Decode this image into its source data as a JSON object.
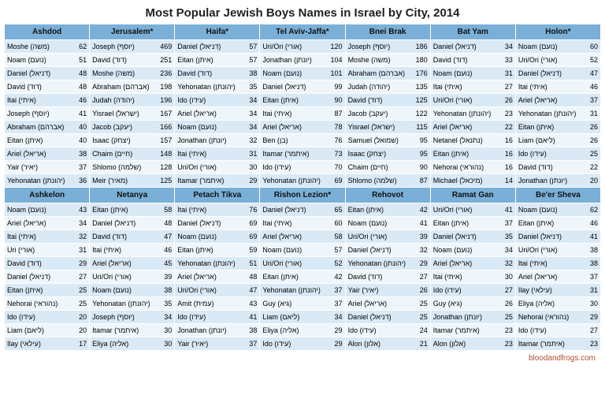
{
  "title": "Most Popular Jewish Boys Names in Israel by City, 2014",
  "footer": "bloodandfrogs.com",
  "colors": {
    "header_bg": "#7ab0d8",
    "row_even": "#d9e9f5",
    "row_odd": "#eff6fb",
    "text": "#111111",
    "footer": "#b05030"
  },
  "layout": {
    "rows_per_city": 11,
    "cities_per_block": 7,
    "blocks": 2
  },
  "blocks": [
    [
      {
        "city": "Ashdod",
        "rows": [
          {
            "name": "Moshe (משה)",
            "n": 62
          },
          {
            "name": "Noam (נועם)",
            "n": 51
          },
          {
            "name": "Daniel (דניאל)",
            "n": 48
          },
          {
            "name": "David (דוד)",
            "n": 48
          },
          {
            "name": "Itai (איתי)",
            "n": 46
          },
          {
            "name": "Joseph (יוסף)",
            "n": 41
          },
          {
            "name": "Abraham (אברהם)",
            "n": 40
          },
          {
            "name": "Eitan (איתן)",
            "n": 40
          },
          {
            "name": "Ariel (אריאל)",
            "n": 38
          },
          {
            "name": "Yair (יאיר)",
            "n": 37
          },
          {
            "name": "Yehonatan (יהונתן)",
            "n": 36
          }
        ]
      },
      {
        "city": "Jerusalem*",
        "rows": [
          {
            "name": "Joseph (יוסף)",
            "n": 469
          },
          {
            "name": "David (דוד)",
            "n": 251
          },
          {
            "name": "Moshe (משה)",
            "n": 236
          },
          {
            "name": "Abraham (אברהם)",
            "n": 198
          },
          {
            "name": "Judah (יהודה)",
            "n": 196
          },
          {
            "name": "Yisrael (ישראל)",
            "n": 167
          },
          {
            "name": "Jacob (יעקב)",
            "n": 166
          },
          {
            "name": "Isaac (יצחק)",
            "n": 157
          },
          {
            "name": "Chaim (חיים)",
            "n": 148
          },
          {
            "name": "Shlomo (שלמה)",
            "n": 128
          },
          {
            "name": "Meir (מאיר)",
            "n": 125
          }
        ]
      },
      {
        "city": "Haifa*",
        "rows": [
          {
            "name": "Daniel (דניאל)",
            "n": 57
          },
          {
            "name": "Eitan (איתן)",
            "n": 57
          },
          {
            "name": "David (דוד)",
            "n": 38
          },
          {
            "name": "Yehonatan (יהונתן)",
            "n": 35
          },
          {
            "name": "Ido (עידו)",
            "n": 34
          },
          {
            "name": "Ariel (אריאל)",
            "n": 34
          },
          {
            "name": "Noam (נועם)",
            "n": 34
          },
          {
            "name": "Jonathan (יונתן)",
            "n": 32
          },
          {
            "name": "Itai (איתי)",
            "n": 31
          },
          {
            "name": "Uri/Ori (אורי)",
            "n": 30
          },
          {
            "name": "Itamar (איתמר)",
            "n": 29
          }
        ]
      },
      {
        "city": "Tel Aviv-Jaffa*",
        "rows": [
          {
            "name": "Uri/Ori (אורי)",
            "n": 120
          },
          {
            "name": "Jonathan (יונתן)",
            "n": 104
          },
          {
            "name": "Noam (נועם)",
            "n": 101
          },
          {
            "name": "Daniel (דניאל)",
            "n": 99
          },
          {
            "name": "Eitan (איתן)",
            "n": 90
          },
          {
            "name": "Itai (איתי)",
            "n": 87
          },
          {
            "name": "Ariel (אריאל)",
            "n": 78
          },
          {
            "name": "Ben (בן)",
            "n": 76
          },
          {
            "name": "Itamar (איתמר)",
            "n": 73
          },
          {
            "name": "Ido (עידו)",
            "n": 70
          },
          {
            "name": "Yehonatan (יהונתן)",
            "n": 69
          }
        ]
      },
      {
        "city": "Bnei Brak",
        "rows": [
          {
            "name": "Joseph (יוסף)",
            "n": 186
          },
          {
            "name": "Moshe (משה)",
            "n": 180
          },
          {
            "name": "Abraham (אברהם)",
            "n": 176
          },
          {
            "name": "Judah (יהודה)",
            "n": 135
          },
          {
            "name": "David (דוד)",
            "n": 125
          },
          {
            "name": "Jacob (יעקב)",
            "n": 122
          },
          {
            "name": "Yisrael (ישראל)",
            "n": 115
          },
          {
            "name": "Samuel (שמואל)",
            "n": 95
          },
          {
            "name": "Isaac (יצחק)",
            "n": 95
          },
          {
            "name": "Chaim (חיים)",
            "n": 90
          },
          {
            "name": "Shlomo (שלמה)",
            "n": 87
          }
        ]
      },
      {
        "city": "Bat Yam",
        "rows": [
          {
            "name": "Daniel (דניאל)",
            "n": 34
          },
          {
            "name": "David (דוד)",
            "n": 33
          },
          {
            "name": "Noam (נועם)",
            "n": 31
          },
          {
            "name": "Itai (איתי)",
            "n": 27
          },
          {
            "name": "Uri/Ori (אורי)",
            "n": 26
          },
          {
            "name": "Yehonatan (יהונתן)",
            "n": 23
          },
          {
            "name": "Ariel (אריאל)",
            "n": 22
          },
          {
            "name": "Netanel (נתנאל)",
            "n": 16
          },
          {
            "name": "Eitan (איתן)",
            "n": 16
          },
          {
            "name": "Nehorai (נהוראי)",
            "n": 16
          },
          {
            "name": "Michael (מיכאל)",
            "n": 14
          }
        ]
      },
      {
        "city": "Holon*",
        "rows": [
          {
            "name": "Noam (נועם)",
            "n": 60
          },
          {
            "name": "Uri/Ori (אורי)",
            "n": 52
          },
          {
            "name": "Daniel (דניאל)",
            "n": 47
          },
          {
            "name": "Itai (איתי)",
            "n": 46
          },
          {
            "name": "Ariel (אריאל)",
            "n": 37
          },
          {
            "name": "Yehonatan (יהונתן)",
            "n": 31
          },
          {
            "name": "Eitan (איתן)",
            "n": 26
          },
          {
            "name": "Liam (ליאם)",
            "n": 26
          },
          {
            "name": "Ido (עידו)",
            "n": 25
          },
          {
            "name": "David (דוד)",
            "n": 22
          },
          {
            "name": "Jonathan (יונתן)",
            "n": 20
          }
        ]
      }
    ],
    [
      {
        "city": "Ashkelon",
        "rows": [
          {
            "name": "Noam (נועם)",
            "n": 43
          },
          {
            "name": "Ariel (אריאל)",
            "n": 34
          },
          {
            "name": "Itai (איתי)",
            "n": 32
          },
          {
            "name": "Uri (אורי)",
            "n": 31
          },
          {
            "name": "David (דוד)",
            "n": 29
          },
          {
            "name": "Daniel (דניאל)",
            "n": 27
          },
          {
            "name": "Eitan (איתן)",
            "n": 25
          },
          {
            "name": "Nehorai (נהוראי)",
            "n": 25
          },
          {
            "name": "Ido (עידו)",
            "n": 20
          },
          {
            "name": "Liam (ליאם)",
            "n": 20
          },
          {
            "name": "Ilay (עילאי)",
            "n": 17
          }
        ]
      },
      {
        "city": "Netanya",
        "rows": [
          {
            "name": "Eitan (איתן)",
            "n": 58
          },
          {
            "name": "Daniel (דניאל)",
            "n": 48
          },
          {
            "name": "David (דוד)",
            "n": 47
          },
          {
            "name": "Itai (איתי)",
            "n": 46
          },
          {
            "name": "Ariel (אריאל)",
            "n": 45
          },
          {
            "name": "Uri/Ori (אורי)",
            "n": 39
          },
          {
            "name": "Noam (נועם)",
            "n": 38
          },
          {
            "name": "Yehonatan (יהונתן)",
            "n": 35
          },
          {
            "name": "Joseph (יוסף)",
            "n": 34
          },
          {
            "name": "Itamar (איתמר)",
            "n": 30
          },
          {
            "name": "Eliya (אליה)",
            "n": 30
          }
        ]
      },
      {
        "city": "Petach Tikva",
        "rows": [
          {
            "name": "Itai (איתי)",
            "n": 76
          },
          {
            "name": "Daniel (דניאל)",
            "n": 69
          },
          {
            "name": "Noam (נועם)",
            "n": 69
          },
          {
            "name": "Eitan (איתן)",
            "n": 59
          },
          {
            "name": "Yehonatan (יהונתן)",
            "n": 51
          },
          {
            "name": "Ariel (אריאל)",
            "n": 48
          },
          {
            "name": "Uri/Ori (אורי)",
            "n": 47
          },
          {
            "name": "Amit (עמית)",
            "n": 43
          },
          {
            "name": "Ido (עידו)",
            "n": 41
          },
          {
            "name": "Jonathan (יונתן)",
            "n": 38
          },
          {
            "name": "Yair (יאיר)",
            "n": 37
          }
        ]
      },
      {
        "city": "Rishon Lezion*",
        "rows": [
          {
            "name": "Daniel (דניאל)",
            "n": 65
          },
          {
            "name": "Itai (איתי)",
            "n": 60
          },
          {
            "name": "Ariel (אריאל)",
            "n": 58
          },
          {
            "name": "Noam (נועם)",
            "n": 57
          },
          {
            "name": "Uri/Ori (אורי)",
            "n": 52
          },
          {
            "name": "Eitan (איתן)",
            "n": 42
          },
          {
            "name": "Yehonatan (יהונתן)",
            "n": 37
          },
          {
            "name": "Guy (גיא)",
            "n": 37
          },
          {
            "name": "Liam (ליאם)",
            "n": 34
          },
          {
            "name": "Eliya (אליה)",
            "n": 29
          },
          {
            "name": "Ido (עידו)",
            "n": 29
          }
        ]
      },
      {
        "city": "Rehovot",
        "rows": [
          {
            "name": "Eitan (איתן)",
            "n": 42
          },
          {
            "name": "Noam (נועם)",
            "n": 41
          },
          {
            "name": "Uri/Ori (אורי)",
            "n": 39
          },
          {
            "name": "Daniel (דניאל)",
            "n": 32
          },
          {
            "name": "Yehonatan (יהונתן)",
            "n": 29
          },
          {
            "name": "David (דוד)",
            "n": 27
          },
          {
            "name": "Yair (יאיר)",
            "n": 26
          },
          {
            "name": "Ariel (אריאל)",
            "n": 25
          },
          {
            "name": "Daniel (דניאל)",
            "n": 25
          },
          {
            "name": "Ido (עידו)",
            "n": 24
          },
          {
            "name": "Alon (אלון)",
            "n": 21
          }
        ]
      },
      {
        "city": "Ramat Gan",
        "rows": [
          {
            "name": "Uri/Ori (אורי)",
            "n": 41
          },
          {
            "name": "Eitan (איתן)",
            "n": 37
          },
          {
            "name": "Daniel (דניאל)",
            "n": 35
          },
          {
            "name": "Noam (נועם)",
            "n": 34
          },
          {
            "name": "Ariel (אריאל)",
            "n": 32
          },
          {
            "name": "Itai (איתי)",
            "n": 30
          },
          {
            "name": "Ido (עידו)",
            "n": 27
          },
          {
            "name": "Guy (גיא)",
            "n": 26
          },
          {
            "name": "Jonathan (יונתן)",
            "n": 25
          },
          {
            "name": "Itamar (איתמר)",
            "n": 23
          },
          {
            "name": "Alon (אלון)",
            "n": 23
          }
        ]
      },
      {
        "city": "Be'er Sheva",
        "rows": [
          {
            "name": "Noam (נועם)",
            "n": 62
          },
          {
            "name": "Eitan (איתן)",
            "n": 46
          },
          {
            "name": "Daniel (דניאל)",
            "n": 41
          },
          {
            "name": "Uri/Ori (אורי)",
            "n": 38
          },
          {
            "name": "Itai (איתי)",
            "n": 38
          },
          {
            "name": "Ariel (אריאל)",
            "n": 37
          },
          {
            "name": "Ilay (עילאי)",
            "n": 31
          },
          {
            "name": "Eliya (אליה)",
            "n": 30
          },
          {
            "name": "Nehorai (נהוראי)",
            "n": 29
          },
          {
            "name": "Ido (עידו)",
            "n": 27
          },
          {
            "name": "Itamar (איתמר)",
            "n": 23
          }
        ]
      }
    ]
  ]
}
